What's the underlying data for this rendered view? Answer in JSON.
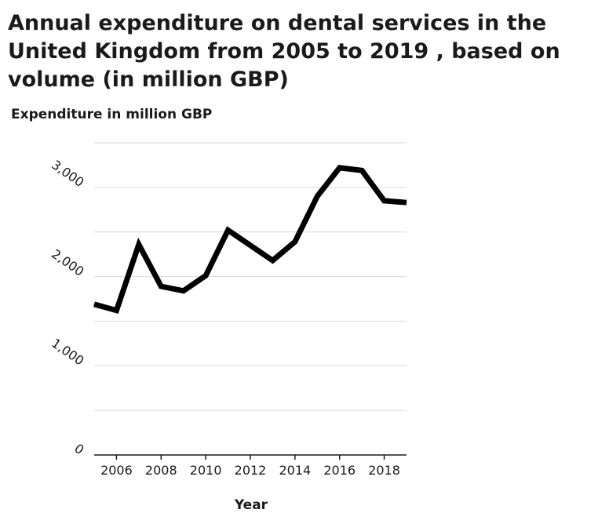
{
  "chart_data": {
    "type": "line",
    "title": "Annual expenditure on dental services in the United Kingdom from 2005 to 2019 , based on volume (in million GBP)",
    "xlabel": "Year",
    "ylabel": "Expenditure in million GBP",
    "x": [
      2005,
      2006,
      2007,
      2008,
      2009,
      2010,
      2011,
      2012,
      2013,
      2014,
      2015,
      2016,
      2017,
      2018,
      2019
    ],
    "series": [
      {
        "values": [
          1690,
          1620,
          2360,
          1890,
          1840,
          2010,
          2520,
          2350,
          2180,
          2390,
          2900,
          3220,
          3190,
          2850,
          2830
        ]
      }
    ],
    "xlim": [
      2005,
      2019
    ],
    "ylim": [
      0,
      3500
    ],
    "x_ticks": [
      2006,
      2008,
      2010,
      2012,
      2014,
      2016,
      2018
    ],
    "x_tick_labels": [
      "2006",
      "2008",
      "2010",
      "2012",
      "2014",
      "2016",
      "2018"
    ],
    "y_ticks": [
      0,
      1000,
      2000,
      3000
    ],
    "y_tick_labels": [
      "0",
      "1,000",
      "2,000",
      "3,000"
    ],
    "gridlines_y": [
      500,
      1000,
      1500,
      2000,
      2500,
      3000,
      3500
    ],
    "grid": true,
    "line_color": "#000000",
    "grid_color": "#d9d9d9"
  }
}
